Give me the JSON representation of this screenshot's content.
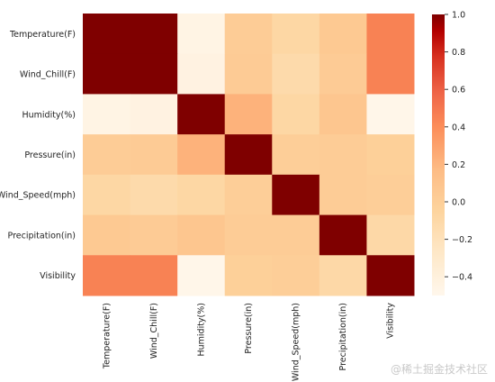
{
  "chart_data": {
    "type": "heatmap",
    "title": "",
    "rows": [
      "Temperature(F)",
      "Wind_Chill(F)",
      "Humidity(%)",
      "Pressure(in)",
      "Wind_Speed(mph)",
      "Precipitation(in)",
      "Visibility"
    ],
    "cols": [
      "Temperature(F)",
      "Wind_Chill(F)",
      "Humidity(%)",
      "Pressure(in)",
      "Wind_Speed(mph)",
      "Precipitation(in)",
      "Visibility"
    ],
    "values": [
      [
        1.0,
        1.0,
        -0.45,
        0.02,
        -0.08,
        0.05,
        0.45
      ],
      [
        1.0,
        1.0,
        -0.43,
        0.03,
        -0.12,
        0.03,
        0.45
      ],
      [
        -0.45,
        -0.43,
        1.0,
        0.22,
        -0.08,
        0.08,
        -0.48
      ],
      [
        0.02,
        0.03,
        0.22,
        1.0,
        0.0,
        0.02,
        -0.01
      ],
      [
        -0.08,
        -0.12,
        -0.08,
        0.0,
        1.0,
        0.02,
        0.0
      ],
      [
        0.05,
        0.03,
        0.08,
        0.02,
        0.02,
        1.0,
        -0.1
      ],
      [
        0.45,
        0.45,
        -0.48,
        -0.01,
        0.0,
        -0.1,
        1.0
      ]
    ],
    "colorbar": {
      "min": -0.5,
      "max": 1.0,
      "cmap": "OrRd",
      "ticks": [
        -0.4,
        -0.2,
        0.0,
        0.2,
        0.4,
        0.6,
        0.8,
        1.0
      ],
      "tick_labels": [
        "−0.4",
        "−0.2",
        "0.0",
        "0.2",
        "0.4",
        "0.6",
        "0.8",
        "1.0"
      ]
    }
  },
  "watermark": "@稀土掘金技术社区"
}
